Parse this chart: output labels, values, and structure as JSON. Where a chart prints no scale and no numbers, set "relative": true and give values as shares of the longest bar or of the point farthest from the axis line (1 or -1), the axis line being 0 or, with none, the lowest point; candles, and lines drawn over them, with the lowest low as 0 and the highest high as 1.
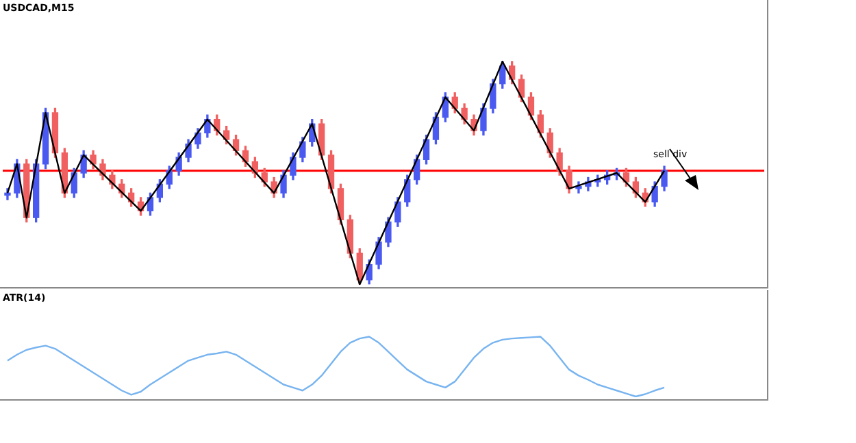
{
  "chart_data": [
    {
      "type": "candlestick",
      "title": "USDCAD,M15",
      "relative": true,
      "tick_labels": false,
      "categories": [
        null,
        null,
        null,
        null,
        null,
        null,
        null,
        null,
        null,
        null,
        null,
        null,
        null,
        null,
        null,
        null,
        null,
        null,
        null,
        null,
        null,
        null,
        null,
        null,
        null,
        null,
        null,
        null,
        null,
        null,
        null,
        null,
        null,
        null,
        null,
        null,
        null,
        null,
        null,
        null,
        null,
        null,
        null,
        null,
        null,
        null,
        null,
        null,
        null,
        null,
        null,
        null,
        null,
        null,
        null,
        null,
        null,
        null,
        null,
        null,
        null,
        null,
        null,
        null,
        null,
        null,
        null,
        null,
        null,
        null,
        null,
        null,
        null,
        null,
        null,
        null,
        null,
        null,
        null,
        null
      ],
      "ohlc": [
        [
          0.4,
          0.43,
          0.38,
          0.41
        ],
        [
          0.41,
          0.56,
          0.39,
          0.54
        ],
        [
          0.54,
          0.56,
          0.28,
          0.3
        ],
        [
          0.3,
          0.56,
          0.28,
          0.54
        ],
        [
          0.54,
          0.79,
          0.52,
          0.77
        ],
        [
          0.77,
          0.79,
          0.57,
          0.59
        ],
        [
          0.59,
          0.61,
          0.39,
          0.41
        ],
        [
          0.41,
          0.52,
          0.39,
          0.5
        ],
        [
          0.5,
          0.6,
          0.48,
          0.58
        ],
        [
          0.58,
          0.6,
          0.52,
          0.54
        ],
        [
          0.54,
          0.56,
          0.47,
          0.49
        ],
        [
          0.49,
          0.51,
          0.43,
          0.45
        ],
        [
          0.45,
          0.47,
          0.39,
          0.41
        ],
        [
          0.41,
          0.43,
          0.35,
          0.37
        ],
        [
          0.37,
          0.39,
          0.31,
          0.33
        ],
        [
          0.33,
          0.41,
          0.31,
          0.39
        ],
        [
          0.39,
          0.47,
          0.37,
          0.45
        ],
        [
          0.45,
          0.53,
          0.43,
          0.51
        ],
        [
          0.51,
          0.59,
          0.49,
          0.57
        ],
        [
          0.57,
          0.65,
          0.55,
          0.63
        ],
        [
          0.63,
          0.7,
          0.61,
          0.68
        ],
        [
          0.68,
          0.76,
          0.66,
          0.74
        ],
        [
          0.74,
          0.76,
          0.67,
          0.69
        ],
        [
          0.69,
          0.71,
          0.63,
          0.65
        ],
        [
          0.65,
          0.67,
          0.58,
          0.6
        ],
        [
          0.6,
          0.62,
          0.53,
          0.55
        ],
        [
          0.55,
          0.57,
          0.48,
          0.5
        ],
        [
          0.5,
          0.52,
          0.44,
          0.46
        ],
        [
          0.46,
          0.48,
          0.39,
          0.41
        ],
        [
          0.41,
          0.51,
          0.39,
          0.49
        ],
        [
          0.49,
          0.59,
          0.47,
          0.57
        ],
        [
          0.57,
          0.66,
          0.55,
          0.64
        ],
        [
          0.64,
          0.74,
          0.62,
          0.72
        ],
        [
          0.72,
          0.74,
          0.56,
          0.58
        ],
        [
          0.58,
          0.6,
          0.41,
          0.43
        ],
        [
          0.43,
          0.45,
          0.27,
          0.29
        ],
        [
          0.29,
          0.31,
          0.12,
          0.14
        ],
        [
          0.14,
          0.16,
          0,
          0.02
        ],
        [
          0.02,
          0.11,
          0,
          0.09
        ],
        [
          0.09,
          0.21,
          0.07,
          0.19
        ],
        [
          0.19,
          0.3,
          0.17,
          0.28
        ],
        [
          0.28,
          0.39,
          0.26,
          0.37
        ],
        [
          0.37,
          0.49,
          0.35,
          0.47
        ],
        [
          0.47,
          0.58,
          0.45,
          0.56
        ],
        [
          0.56,
          0.67,
          0.54,
          0.65
        ],
        [
          0.65,
          0.77,
          0.63,
          0.75
        ],
        [
          0.75,
          0.86,
          0.73,
          0.84
        ],
        [
          0.84,
          0.86,
          0.77,
          0.79
        ],
        [
          0.79,
          0.81,
          0.72,
          0.74
        ],
        [
          0.74,
          0.76,
          0.67,
          0.69
        ],
        [
          0.69,
          0.81,
          0.67,
          0.79
        ],
        [
          0.79,
          0.92,
          0.77,
          0.9
        ],
        [
          0.9,
          1,
          0.88,
          0.98
        ],
        [
          0.98,
          1,
          0.9,
          0.92
        ],
        [
          0.92,
          0.94,
          0.82,
          0.84
        ],
        [
          0.84,
          0.86,
          0.74,
          0.76
        ],
        [
          0.76,
          0.78,
          0.66,
          0.68
        ],
        [
          0.68,
          0.7,
          0.57,
          0.59
        ],
        [
          0.59,
          0.61,
          0.49,
          0.51
        ],
        [
          0.51,
          0.53,
          0.41,
          0.43
        ],
        [
          0.43,
          0.46,
          0.41,
          0.44
        ],
        [
          0.44,
          0.48,
          0.42,
          0.46
        ],
        [
          0.46,
          0.49,
          0.44,
          0.47
        ],
        [
          0.47,
          0.51,
          0.45,
          0.49
        ],
        [
          0.49,
          0.52,
          0.47,
          0.5
        ],
        [
          0.5,
          0.52,
          0.44,
          0.46
        ],
        [
          0.46,
          0.48,
          0.39,
          0.41
        ],
        [
          0.41,
          0.43,
          0.35,
          0.37
        ],
        [
          0.37,
          0.46,
          0.35,
          0.44
        ],
        [
          0.44,
          0.53,
          0.42,
          0.51
        ],
        null,
        null,
        null,
        null,
        null,
        null,
        null,
        null,
        null,
        null
      ],
      "series": [
        {
          "type": "line",
          "color": "#000000",
          "values": [
            0.41,
            0.54,
            0.3,
            null,
            0.77,
            null,
            0.41,
            null,
            0.58,
            null,
            null,
            null,
            null,
            null,
            0.33,
            null,
            null,
            null,
            null,
            null,
            null,
            0.74,
            null,
            null,
            null,
            null,
            null,
            null,
            0.41,
            null,
            null,
            null,
            0.72,
            null,
            null,
            null,
            null,
            0,
            null,
            null,
            null,
            null,
            null,
            null,
            null,
            null,
            0.84,
            null,
            null,
            0.69,
            null,
            null,
            1,
            null,
            null,
            null,
            null,
            null,
            null,
            0.43,
            null,
            null,
            null,
            null,
            0.5,
            null,
            null,
            0.37,
            null,
            0.51,
            null,
            null,
            null,
            null,
            null,
            null,
            null,
            null,
            null,
            null
          ]
        }
      ],
      "ref_lines": [
        {
          "axis": "y",
          "value": 0.51,
          "color": "#ff0000"
        }
      ],
      "annotations": [
        "sell div"
      ]
    },
    {
      "type": "line",
      "title": "ATR(14)",
      "relative": true,
      "tick_labels": false,
      "categories": [
        null,
        null,
        null,
        null,
        null,
        null,
        null,
        null,
        null,
        null,
        null,
        null,
        null,
        null,
        null,
        null,
        null,
        null,
        null,
        null,
        null,
        null,
        null,
        null,
        null,
        null,
        null,
        null,
        null,
        null,
        null,
        null,
        null,
        null,
        null,
        null,
        null,
        null,
        null,
        null,
        null,
        null,
        null,
        null,
        null,
        null,
        null,
        null,
        null,
        null,
        null,
        null,
        null,
        null,
        null,
        null,
        null,
        null,
        null,
        null,
        null,
        null,
        null,
        null,
        null,
        null,
        null,
        null,
        null,
        null,
        null,
        null,
        null,
        null,
        null,
        null,
        null,
        null,
        null,
        null
      ],
      "series": [
        {
          "color": "#78b4f0",
          "values": [
            0.6,
            0.7,
            0.78,
            0.82,
            0.85,
            0.8,
            0.7,
            0.6,
            0.5,
            0.4,
            0.3,
            0.2,
            0.1,
            0.03,
            0.08,
            0.2,
            0.3,
            0.4,
            0.5,
            0.6,
            0.65,
            0.7,
            0.72,
            0.75,
            0.7,
            0.6,
            0.5,
            0.4,
            0.3,
            0.2,
            0.15,
            0.1,
            0.2,
            0.35,
            0.55,
            0.75,
            0.9,
            0.97,
            1.0,
            0.9,
            0.75,
            0.6,
            0.45,
            0.35,
            0.25,
            0.2,
            0.15,
            0.25,
            0.45,
            0.65,
            0.8,
            0.9,
            0.95,
            0.97,
            0.98,
            0.99,
            1.0,
            0.85,
            0.65,
            0.45,
            0.35,
            0.28,
            0.2,
            0.15,
            0.1,
            0.05,
            0,
            0.04,
            0.1,
            0.15,
            null,
            null,
            null,
            null,
            null,
            null,
            null,
            null,
            null,
            null
          ]
        }
      ]
    }
  ]
}
